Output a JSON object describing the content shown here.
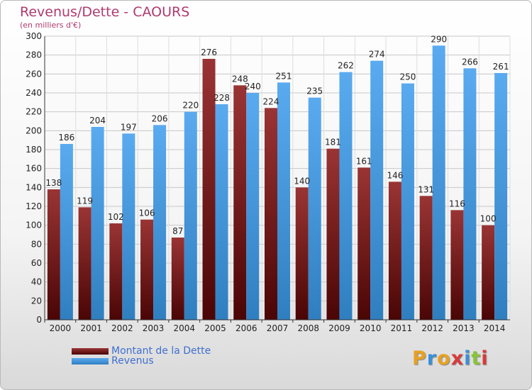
{
  "chart_data": {
    "type": "bar",
    "title": "Revenus/Dette - CAOURS",
    "subtitle": "(en milliers d'€)",
    "categories": [
      "2000",
      "2001",
      "2002",
      "2003",
      "2004",
      "2005",
      "2006",
      "2007",
      "2008",
      "2009",
      "2010",
      "2011",
      "2012",
      "2013",
      "2014"
    ],
    "series": [
      {
        "name": "Montant de la Dette",
        "color": "#7a1f1f",
        "values": [
          138,
          119,
          102,
          106,
          87,
          276,
          248,
          224,
          140,
          181,
          161,
          146,
          131,
          116,
          100
        ]
      },
      {
        "name": "Revenus",
        "color": "#4f9fe0",
        "values": [
          186,
          204,
          197,
          206,
          220,
          228,
          240,
          251,
          235,
          262,
          274,
          250,
          290,
          266,
          261
        ]
      }
    ],
    "ylim": [
      0,
      300
    ],
    "ytick_step": 20,
    "grid": true,
    "legend_position": "bottom-left"
  },
  "logo": {
    "text": "Proxiti"
  }
}
